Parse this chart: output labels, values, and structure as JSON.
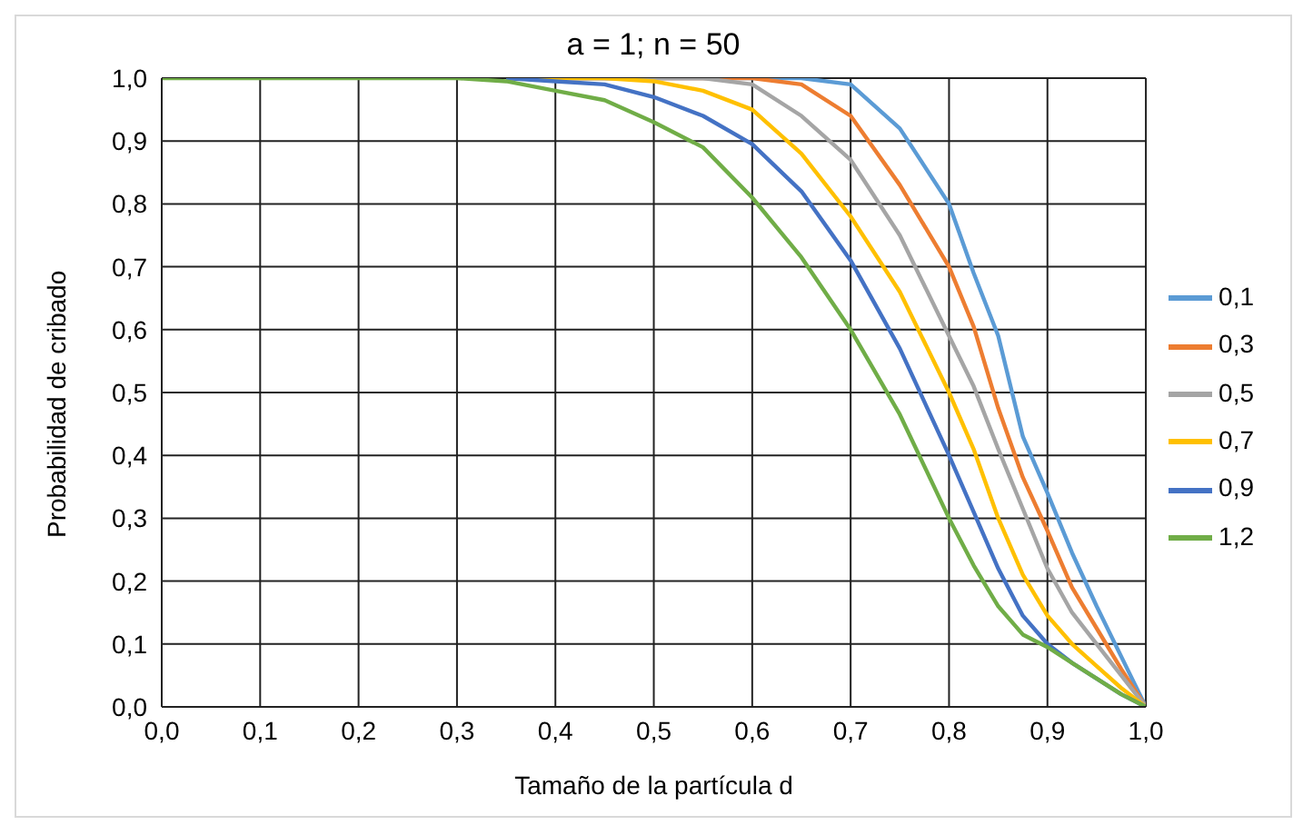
{
  "chart_data": {
    "type": "line",
    "title": "a = 1; n = 50",
    "xlabel": "Tamaño de la partícula d",
    "ylabel": "Probabilidad de cribado",
    "x": [
      0,
      0.1,
      0.2,
      0.3,
      0.35,
      0.4,
      0.45,
      0.5,
      0.55,
      0.6,
      0.65,
      0.7,
      0.75,
      0.8,
      0.825,
      0.85,
      0.875,
      0.9,
      0.925,
      0.95,
      0.975,
      1.0
    ],
    "series": [
      {
        "name": "0,1",
        "color": "#5b9bd5",
        "values": [
          null,
          null,
          null,
          null,
          1,
          1,
          1,
          1,
          1,
          1,
          1,
          0.99,
          0.92,
          0.8,
          0.69,
          0.59,
          0.43,
          0.34,
          0.245,
          0.16,
          0.08,
          0
        ]
      },
      {
        "name": "0,3",
        "color": "#ed7d31",
        "values": [
          null,
          null,
          null,
          null,
          1,
          1,
          1,
          1,
          1,
          1,
          0.99,
          0.94,
          0.83,
          0.7,
          0.605,
          0.475,
          0.365,
          0.28,
          0.19,
          0.125,
          0.06,
          0
        ]
      },
      {
        "name": "0,5",
        "color": "#a5a5a5",
        "values": [
          null,
          null,
          null,
          null,
          1,
          1,
          1,
          1,
          1,
          0.99,
          0.94,
          0.87,
          0.75,
          0.59,
          0.51,
          0.41,
          0.315,
          0.22,
          0.15,
          0.1,
          0.05,
          0
        ]
      },
      {
        "name": "0,7",
        "color": "#ffc000",
        "values": [
          null,
          null,
          null,
          null,
          1,
          1,
          1,
          0.995,
          0.98,
          0.95,
          0.88,
          0.78,
          0.66,
          0.5,
          0.41,
          0.3,
          0.21,
          0.145,
          0.1,
          0.065,
          0.03,
          0
        ]
      },
      {
        "name": "0,9",
        "color": "#4472c4",
        "values": [
          null,
          null,
          null,
          null,
          1,
          0.995,
          0.99,
          0.97,
          0.94,
          0.895,
          0.82,
          0.71,
          0.57,
          0.4,
          0.31,
          0.22,
          0.145,
          0.1,
          0.07,
          0.045,
          0.02,
          0
        ]
      },
      {
        "name": "1,2",
        "color": "#70ad47",
        "values": [
          1,
          1,
          1,
          1,
          0.995,
          0.98,
          0.965,
          0.93,
          0.89,
          0.81,
          0.715,
          0.6,
          0.465,
          0.3,
          0.225,
          0.16,
          0.115,
          0.095,
          0.07,
          0.045,
          0.02,
          0
        ]
      }
    ],
    "xlim": [
      0,
      1
    ],
    "ylim": [
      0,
      1
    ],
    "xticks": [
      {
        "value": 0,
        "label": "0,0"
      },
      {
        "value": 0.1,
        "label": "0,1"
      },
      {
        "value": 0.2,
        "label": "0,2"
      },
      {
        "value": 0.3,
        "label": "0,3"
      },
      {
        "value": 0.4,
        "label": "0,4"
      },
      {
        "value": 0.5,
        "label": "0,5"
      },
      {
        "value": 0.6,
        "label": "0,6"
      },
      {
        "value": 0.7,
        "label": "0,7"
      },
      {
        "value": 0.8,
        "label": "0,8"
      },
      {
        "value": 0.9,
        "label": "0,9"
      },
      {
        "value": 1,
        "label": "1,0"
      }
    ],
    "yticks": [
      {
        "value": 0,
        "label": "0,0"
      },
      {
        "value": 0.1,
        "label": "0,1"
      },
      {
        "value": 0.2,
        "label": "0,2"
      },
      {
        "value": 0.3,
        "label": "0,3"
      },
      {
        "value": 0.4,
        "label": "0,4"
      },
      {
        "value": 0.5,
        "label": "0,5"
      },
      {
        "value": 0.6,
        "label": "0,6"
      },
      {
        "value": 0.7,
        "label": "0,7"
      },
      {
        "value": 0.8,
        "label": "0,8"
      },
      {
        "value": 0.9,
        "label": "0,9"
      },
      {
        "value": 1,
        "label": "1,0"
      }
    ],
    "grid": true,
    "legend": "right",
    "marker": "none",
    "line_style": "solid"
  }
}
